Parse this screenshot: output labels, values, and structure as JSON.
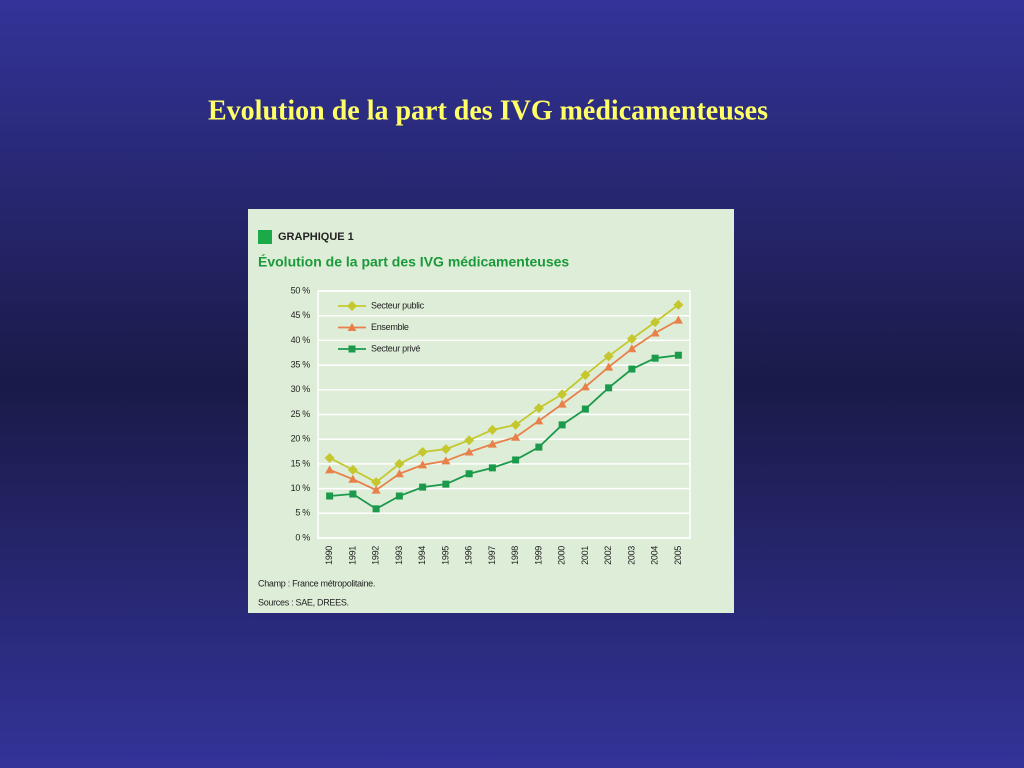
{
  "slide_title": "Evolution de la part des IVG médicamenteuses",
  "chart_data": {
    "type": "line",
    "label": "GRAPHIQUE 1",
    "title": "Évolution de la part des IVG médicamenteuses",
    "categories": [
      "1990",
      "1991",
      "1992",
      "1993",
      "1994",
      "1995",
      "1996",
      "1997",
      "1998",
      "1999",
      "2000",
      "2001",
      "2002",
      "2003",
      "2004",
      "2005"
    ],
    "series": [
      {
        "name": "Secteur public",
        "color": "#c4c82e",
        "marker": "diamond",
        "values": [
          16.2,
          13.8,
          11.3,
          15,
          17.4,
          18,
          19.8,
          21.9,
          22.9,
          26.3,
          29.1,
          33,
          36.8,
          40.3,
          43.7,
          47.2
        ]
      },
      {
        "name": "Ensemble",
        "color": "#e8804a",
        "marker": "triangle",
        "values": [
          13.8,
          11.9,
          9.7,
          13,
          14.8,
          15.6,
          17.4,
          19,
          20.4,
          23.7,
          27.1,
          30.6,
          34.6,
          38.3,
          41.5,
          44.1
        ]
      },
      {
        "name": "Secteur privé",
        "color": "#1a9a4a",
        "marker": "square",
        "values": [
          8.5,
          8.9,
          5.9,
          8.5,
          10.3,
          10.9,
          13,
          14.2,
          15.8,
          18.4,
          22.9,
          26.1,
          30.4,
          34.2,
          36.4,
          37
        ]
      }
    ],
    "ylim": [
      0,
      50
    ],
    "yticks": [
      {
        "value": 0,
        "label": "0 %"
      },
      {
        "value": 5,
        "label": "5 %"
      },
      {
        "value": 10,
        "label": "10 %"
      },
      {
        "value": 15,
        "label": "15 %"
      },
      {
        "value": 20,
        "label": "20 %"
      },
      {
        "value": 25,
        "label": "25 %"
      },
      {
        "value": 30,
        "label": "30 %"
      },
      {
        "value": 35,
        "label": "35 %"
      },
      {
        "value": 40,
        "label": "40 %"
      },
      {
        "value": 45,
        "label": "45 %"
      },
      {
        "value": 50,
        "label": "50 %"
      }
    ],
    "grid": true,
    "legend": "top-left",
    "notes": [
      "Champ : France métropolitaine.",
      "Sources : SAE, DREES."
    ]
  }
}
